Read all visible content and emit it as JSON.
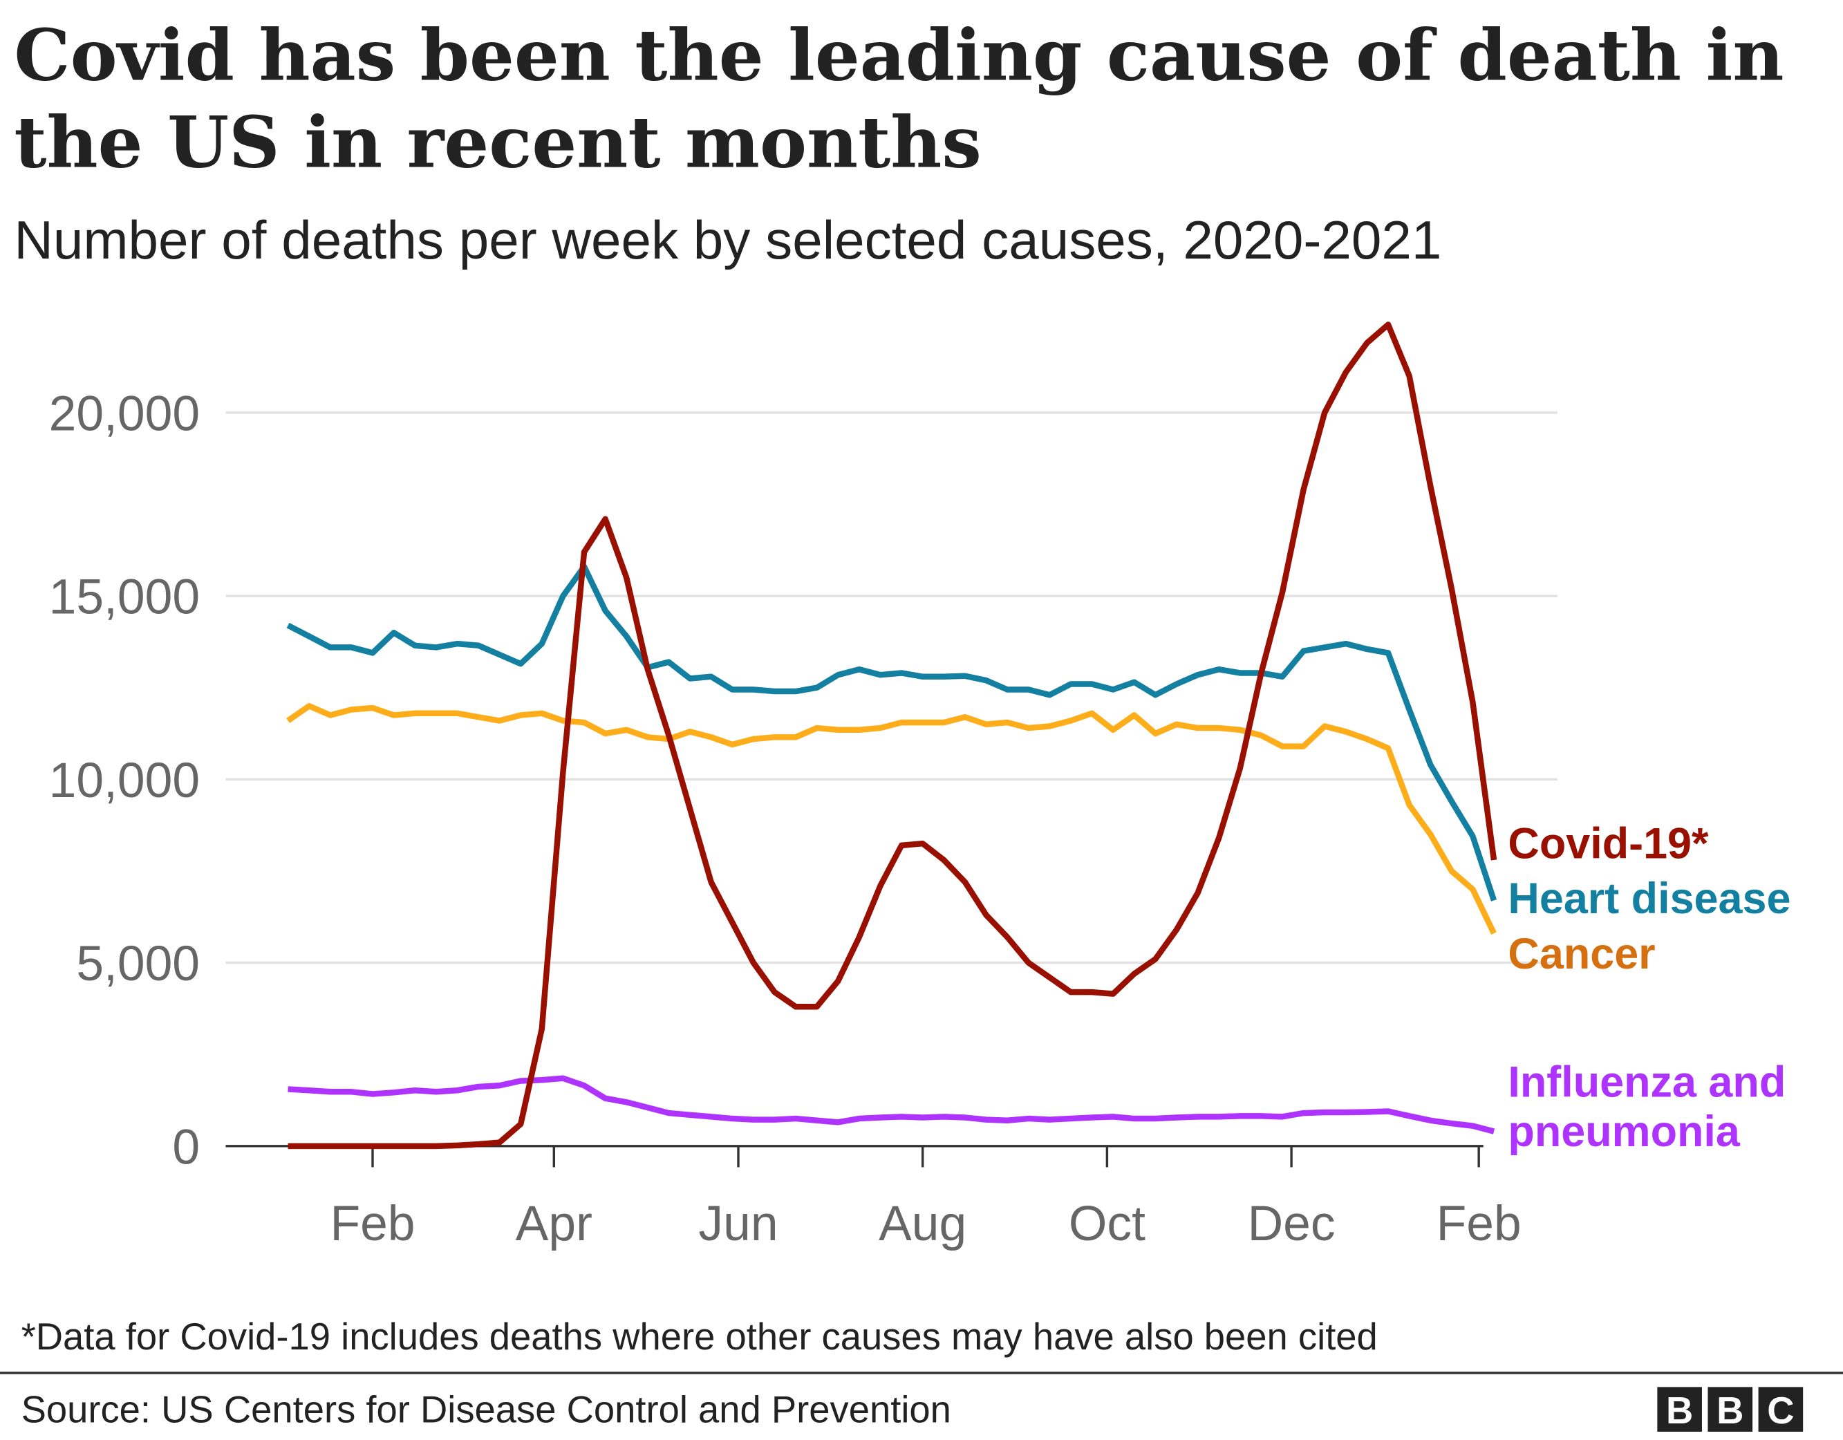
{
  "chart_data": {
    "type": "line",
    "title_lines": [
      "Covid has been the leading cause of death in",
      "the US in recent months"
    ],
    "subtitle": "Number of deaths per week by selected causes, 2020-2021",
    "xlabel": "",
    "ylabel": "",
    "ylim": [
      0,
      22500
    ],
    "yticks": [
      0,
      5000,
      10000,
      15000,
      20000
    ],
    "ytick_labels": [
      "0",
      "5,000",
      "10,000",
      "15,000",
      "20,000"
    ],
    "xticks": [
      "2020-02-01",
      "2020-04-01",
      "2020-06-01",
      "2020-08-01",
      "2020-10-01",
      "2020-12-01",
      "2021-02-01"
    ],
    "xtick_labels": [
      "Feb",
      "Apr",
      "Jun",
      "Aug",
      "Oct",
      "Dec",
      "Feb"
    ],
    "grid": true,
    "legend_placement": "right, inline at line ends",
    "x": [
      "2020-01-04",
      "2020-01-11",
      "2020-01-18",
      "2020-01-25",
      "2020-02-01",
      "2020-02-08",
      "2020-02-15",
      "2020-02-22",
      "2020-02-29",
      "2020-03-07",
      "2020-03-14",
      "2020-03-21",
      "2020-03-28",
      "2020-04-04",
      "2020-04-11",
      "2020-04-18",
      "2020-04-25",
      "2020-05-02",
      "2020-05-09",
      "2020-05-16",
      "2020-05-23",
      "2020-05-30",
      "2020-06-06",
      "2020-06-13",
      "2020-06-20",
      "2020-06-27",
      "2020-07-04",
      "2020-07-11",
      "2020-07-18",
      "2020-07-25",
      "2020-08-01",
      "2020-08-08",
      "2020-08-15",
      "2020-08-22",
      "2020-08-29",
      "2020-09-05",
      "2020-09-12",
      "2020-09-19",
      "2020-09-26",
      "2020-10-03",
      "2020-10-10",
      "2020-10-17",
      "2020-10-24",
      "2020-10-31",
      "2020-11-07",
      "2020-11-14",
      "2020-11-21",
      "2020-11-28",
      "2020-12-05",
      "2020-12-12",
      "2020-12-19",
      "2020-12-26",
      "2021-01-02",
      "2021-01-09",
      "2021-01-16",
      "2021-01-23",
      "2021-01-30",
      "2021-02-06"
    ],
    "series": [
      {
        "name": "Covid-19*",
        "color": "#990f00",
        "label_color": "#990f00",
        "values": [
          0,
          0,
          0,
          0,
          0,
          0,
          0,
          0,
          20,
          50,
          100,
          600,
          3200,
          10200,
          16200,
          17100,
          15500,
          13000,
          11200,
          9200,
          7200,
          6100,
          5000,
          4200,
          3800,
          3800,
          4500,
          5700,
          7100,
          8200,
          8250,
          7800,
          7200,
          6300,
          5700,
          5000,
          4600,
          4200,
          4200,
          4150,
          4700,
          5100,
          5900,
          6900,
          8400,
          10300,
          12900,
          15100,
          17900,
          20000,
          21100,
          21900,
          22400,
          21000,
          18000,
          15200,
          12100,
          7800
        ]
      },
      {
        "name": "Heart disease",
        "color": "#1380a1",
        "label_color": "#1380a1",
        "values": [
          14200,
          13900,
          13600,
          13600,
          13450,
          14000,
          13650,
          13600,
          13700,
          13650,
          13400,
          13150,
          13700,
          15000,
          15800,
          14600,
          13900,
          13050,
          13200,
          12750,
          12800,
          12450,
          12450,
          12400,
          12400,
          12500,
          12850,
          13000,
          12850,
          12900,
          12800,
          12800,
          12820,
          12700,
          12450,
          12450,
          12300,
          12600,
          12600,
          12450,
          12650,
          12300,
          12600,
          12850,
          13000,
          12900,
          12900,
          12800,
          13500,
          13600,
          13700,
          13550,
          13450,
          11900,
          10400,
          9400,
          8450,
          6700
        ]
      },
      {
        "name": "Cancer",
        "color": "#fdad1a",
        "label_color": "#d4700f",
        "values": [
          11600,
          12000,
          11750,
          11900,
          11950,
          11750,
          11800,
          11800,
          11800,
          11700,
          11600,
          11750,
          11800,
          11600,
          11550,
          11250,
          11350,
          11150,
          11100,
          11300,
          11150,
          10950,
          11100,
          11150,
          11150,
          11400,
          11350,
          11350,
          11400,
          11550,
          11550,
          11550,
          11700,
          11500,
          11550,
          11400,
          11450,
          11600,
          11800,
          11350,
          11750,
          11250,
          11500,
          11400,
          11400,
          11350,
          11200,
          10900,
          10900,
          11450,
          11300,
          11100,
          10850,
          9300,
          8500,
          7500,
          7000,
          5800
        ]
      },
      {
        "name": "Influenza and pneumonia",
        "name_lines": [
          "Influenza and",
          "pneumonia"
        ],
        "color": "#ae33ff",
        "label_color": "#ae33ff",
        "values": [
          1550,
          1520,
          1480,
          1480,
          1420,
          1460,
          1520,
          1480,
          1520,
          1620,
          1650,
          1780,
          1800,
          1850,
          1650,
          1300,
          1200,
          1050,
          900,
          850,
          800,
          750,
          720,
          720,
          750,
          700,
          650,
          750,
          780,
          800,
          780,
          800,
          780,
          720,
          700,
          750,
          720,
          750,
          780,
          800,
          750,
          750,
          780,
          800,
          800,
          820,
          820,
          800,
          900,
          920,
          920,
          930,
          950,
          820,
          700,
          620,
          550,
          400
        ]
      }
    ]
  },
  "footnote": "*Data for Covid-19 includes deaths where other causes may have also been cited",
  "source": "Source: US Centers for Disease Control and Prevention",
  "logo": {
    "letters": [
      "B",
      "B",
      "C"
    ]
  }
}
